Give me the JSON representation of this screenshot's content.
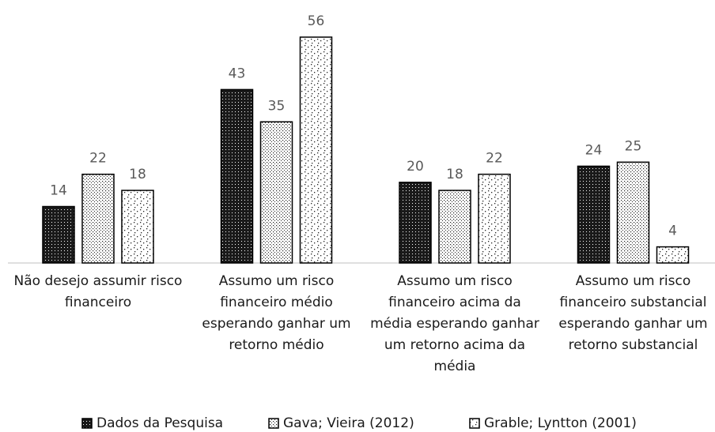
{
  "chart_data": {
    "type": "bar",
    "categories": [
      "Não desejo assumir risco financeiro",
      "Assumo um risco financeiro médio esperando ganhar um retorno médio",
      "Assumo um risco financeiro acima da média esperando ganhar um retorno acima da média",
      "Assumo um risco financeiro substancial esperando ganhar um retorno substancial"
    ],
    "series": [
      {
        "name": "Dados da Pesquisa",
        "color": "#1a1a1a",
        "values": [
          14,
          43,
          20,
          24
        ]
      },
      {
        "name": "Gava; Vieira (2012)",
        "color": "#ffffff",
        "values": [
          22,
          35,
          18,
          25
        ]
      },
      {
        "name": "Grable; Lyntton (2001)",
        "color": "#ffffff",
        "values": [
          18,
          56,
          22,
          4
        ]
      }
    ],
    "legend": "bottom"
  }
}
